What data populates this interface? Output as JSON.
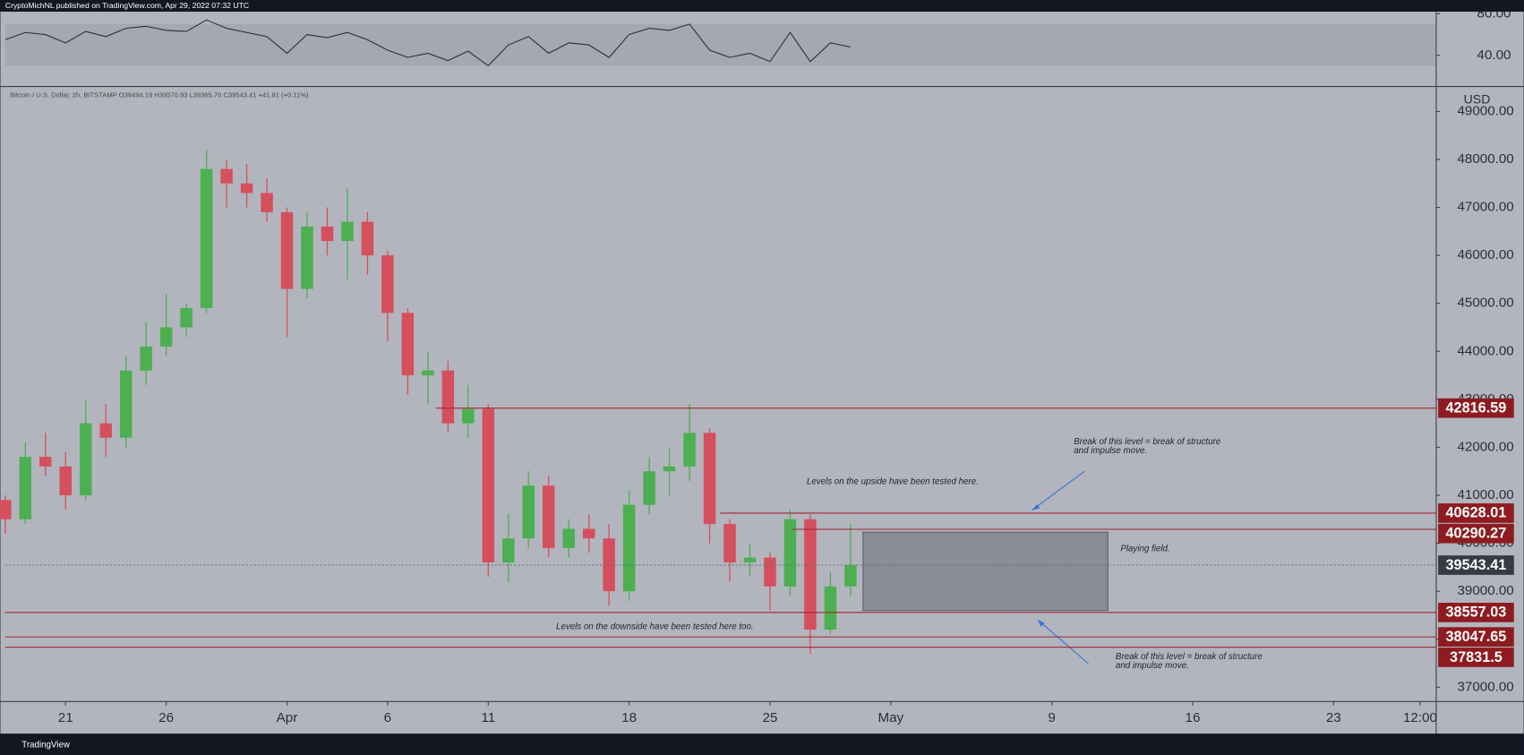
{
  "header": {
    "publisher": "CryptoMichNL published on TradingView.com, Apr 29, 2022 07:32 UTC",
    "footer": "TradingView"
  },
  "chart_data": [
    {
      "type": "candlestick",
      "legend": "Bitcoin / U.S. Dollar, 2h, BITSTAMP  O39494.19  H39570.93  L39365.70  C39543.41  +41.81 (+0.11%)",
      "currency": "USD",
      "x": [
        77,
        78,
        79,
        80,
        81,
        82,
        83,
        84,
        85,
        86,
        87,
        88,
        89,
        90,
        91,
        92,
        93,
        94,
        95,
        96,
        97,
        98,
        99,
        100,
        101,
        102,
        103,
        104,
        105,
        106,
        107,
        108,
        109,
        110,
        111,
        112,
        113,
        114,
        115,
        116,
        117,
        118,
        119
      ],
      "open": [
        40900,
        40500,
        41800,
        41600,
        41000,
        42500,
        42200,
        43600,
        44100,
        44500,
        44900,
        47800,
        47500,
        47300,
        46900,
        45300,
        46600,
        46300,
        46700,
        46000,
        44800,
        43500,
        43600,
        42500,
        42800,
        39600,
        40100,
        41200,
        39900,
        40300,
        40100,
        39000,
        40800,
        41500,
        41600,
        42300,
        40400,
        39600,
        39700,
        39100,
        40500,
        38200,
        39100
      ],
      "high": [
        41000,
        42100,
        42300,
        41900,
        43000,
        42900,
        43900,
        44600,
        45200,
        45000,
        48200,
        48000,
        47900,
        47600,
        47000,
        46900,
        47000,
        47400,
        46900,
        46100,
        44900,
        44000,
        43800,
        43300,
        42900,
        40600,
        41500,
        41400,
        40500,
        40600,
        40400,
        41100,
        41800,
        42000,
        42900,
        42400,
        40500,
        40000,
        39800,
        40700,
        40600,
        39400,
        40400
      ],
      "low": [
        40200,
        40400,
        41400,
        40700,
        40900,
        41800,
        42000,
        43300,
        43900,
        44300,
        44800,
        47000,
        47000,
        46700,
        44300,
        45100,
        46000,
        45500,
        45600,
        44200,
        43100,
        42900,
        42300,
        42200,
        39300,
        39200,
        39900,
        39700,
        39700,
        39800,
        38700,
        38800,
        40600,
        41000,
        41300,
        40000,
        39200,
        39300,
        38600,
        38900,
        37700,
        38100,
        38900
      ],
      "close": [
        40500,
        41800,
        41600,
        41000,
        42500,
        42200,
        43600,
        44100,
        44500,
        44900,
        47800,
        47500,
        47300,
        46900,
        45300,
        46600,
        46300,
        46700,
        46000,
        44800,
        43500,
        43600,
        42500,
        42800,
        39600,
        40100,
        41200,
        39900,
        40300,
        40100,
        39000,
        40800,
        41500,
        41600,
        42300,
        40400,
        39600,
        39700,
        39100,
        40500,
        38200,
        39100,
        39543.41
      ],
      "up_color": "#4caf50",
      "down_color": "#d4505c",
      "xlim": [
        77,
        148.1
      ],
      "xticks": [
        {
          "value": 80,
          "label": "21"
        },
        {
          "value": 85,
          "label": "26"
        },
        {
          "value": 91,
          "label": "Apr"
        },
        {
          "value": 96,
          "label": "6"
        },
        {
          "value": 101,
          "label": "11"
        },
        {
          "value": 108,
          "label": "18"
        },
        {
          "value": 115,
          "label": "25"
        },
        {
          "value": 121,
          "label": "May"
        },
        {
          "value": 129,
          "label": "9"
        },
        {
          "value": 136,
          "label": "16"
        },
        {
          "value": 143,
          "label": "23"
        },
        {
          "value": 147.3,
          "label": "12:00"
        }
      ],
      "ylim": [
        36700,
        49500
      ],
      "yticks": [
        {
          "value": 37000,
          "label": "37000.00"
        },
        {
          "value": 38000,
          "label": "38000.00"
        },
        {
          "value": 39000,
          "label": "39000.00"
        },
        {
          "value": 40000,
          "label": "40000.00"
        },
        {
          "value": 41000,
          "label": "41000.00"
        },
        {
          "value": 42000,
          "label": "42000.00"
        },
        {
          "value": 43000,
          "label": "43000.00"
        },
        {
          "value": 44000,
          "label": "44000.00"
        },
        {
          "value": 45000,
          "label": "45000.00"
        },
        {
          "value": 46000,
          "label": "46000.00"
        },
        {
          "value": 47000,
          "label": "47000.00"
        },
        {
          "value": 48000,
          "label": "48000.00"
        },
        {
          "value": 49000,
          "label": "49000.00"
        }
      ],
      "level_color": "#a3262a",
      "level_label_color": "#8e1b1f",
      "levels": [
        {
          "value": 42816.59,
          "start": 98.4
        },
        {
          "value": 40628.01,
          "start": 112.5
        },
        {
          "value": 40290.27,
          "start": 116.1
        },
        {
          "value": 38557.03
        },
        {
          "value": 38047.65
        },
        {
          "value": 37831.5
        }
      ],
      "annotations": {
        "upside": "Levels on the upside have been tested here.",
        "break_up": [
          "Break of this level = break of structure",
          "and impulse move."
        ],
        "field": "Playing field.",
        "downside": "Levels on the downside have been tested here too.",
        "break_down": [
          "Break of this level = break of structure",
          "and impulse move."
        ]
      }
    },
    {
      "type": "line",
      "x": [
        77,
        78,
        79,
        80,
        81,
        82,
        83,
        84,
        85,
        86,
        87,
        88,
        89,
        90,
        91,
        92,
        93,
        94,
        95,
        96,
        97,
        98,
        99,
        100,
        101,
        102,
        103,
        104,
        105,
        106,
        107,
        108,
        109,
        110,
        111,
        112,
        113,
        114,
        115,
        116,
        117,
        118,
        119
      ],
      "values": [
        55,
        62,
        60,
        52,
        63,
        58,
        66,
        68,
        64,
        63,
        74,
        66,
        62,
        58,
        42,
        60,
        57,
        62,
        55,
        45,
        38,
        42,
        35,
        44,
        30,
        50,
        58,
        42,
        52,
        50,
        38,
        60,
        66,
        64,
        70,
        45,
        38,
        42,
        34,
        62,
        34,
        52,
        48
      ],
      "color": "#2a2e39",
      "band": [
        30,
        70
      ],
      "ylim": [
        11,
        82
      ],
      "yticks": [
        {
          "value": 80,
          "label": "80.00"
        },
        {
          "value": 40,
          "label": "40.00"
        }
      ]
    }
  ]
}
